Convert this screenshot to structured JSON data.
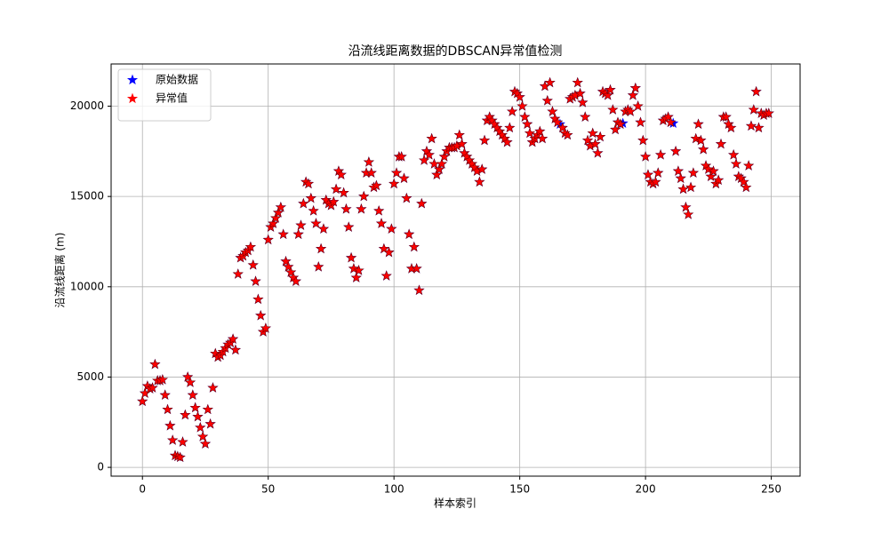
{
  "chart_data": {
    "type": "scatter",
    "title": "沿流线距离数据的DBSCAN异常值检测",
    "xlabel": "样本索引",
    "ylabel": "沿流线距离 (m)",
    "xlim": [
      -12.45,
      261.45
    ],
    "ylim": [
      -487,
      22337
    ],
    "xticks": [
      0,
      50,
      100,
      150,
      200,
      250
    ],
    "yticks": [
      0,
      5000,
      10000,
      15000,
      20000
    ],
    "grid": true,
    "legend": "upper-left",
    "x": [
      0,
      1,
      2,
      3,
      4,
      5,
      6,
      7,
      8,
      9,
      10,
      11,
      12,
      13,
      14,
      15,
      16,
      17,
      18,
      19,
      20,
      21,
      22,
      23,
      24,
      25,
      26,
      27,
      28,
      29,
      30,
      31,
      32,
      33,
      34,
      35,
      36,
      37,
      38,
      39,
      40,
      41,
      42,
      43,
      44,
      45,
      46,
      47,
      48,
      49,
      50,
      51,
      52,
      53,
      54,
      55,
      56,
      57,
      58,
      59,
      60,
      61,
      62,
      63,
      64,
      65,
      66,
      67,
      68,
      69,
      70,
      71,
      72,
      73,
      74,
      75,
      76,
      77,
      78,
      79,
      80,
      81,
      82,
      83,
      84,
      85,
      86,
      87,
      88,
      89,
      90,
      91,
      92,
      93,
      94,
      95,
      96,
      97,
      98,
      99,
      100,
      101,
      102,
      103,
      104,
      105,
      106,
      107,
      108,
      109,
      110,
      111,
      112,
      113,
      114,
      115,
      116,
      117,
      118,
      119,
      120,
      121,
      122,
      123,
      124,
      125,
      126,
      127,
      128,
      129,
      130,
      131,
      132,
      133,
      134,
      135,
      136,
      137,
      138,
      139,
      140,
      141,
      142,
      143,
      144,
      145,
      146,
      147,
      148,
      149,
      150,
      151,
      152,
      153,
      154,
      155,
      156,
      157,
      158,
      159,
      160,
      161,
      162,
      163,
      164,
      165,
      166,
      167,
      168,
      169,
      170,
      171,
      172,
      173,
      174,
      175,
      176,
      177,
      178,
      179,
      180,
      181,
      182,
      183,
      184,
      185,
      186,
      187,
      188,
      189,
      190,
      191,
      192,
      193,
      194,
      195,
      196,
      197,
      198,
      199,
      200,
      201,
      202,
      203,
      204,
      205,
      206,
      207,
      208,
      209,
      210,
      211,
      212,
      213,
      214,
      215,
      216,
      217,
      218,
      219,
      220,
      221,
      222,
      223,
      224,
      225,
      226,
      227,
      228,
      229,
      230,
      231,
      232,
      233,
      234,
      235,
      236,
      237,
      238,
      239,
      240,
      241,
      242,
      243,
      244,
      245,
      246,
      247,
      248,
      249
    ],
    "series": [
      {
        "name": "原始数据",
        "color": "#0000ff",
        "values": [
          3650,
          4100,
          4500,
          4350,
          4400,
          5700,
          4800,
          4800,
          4850,
          4000,
          3200,
          2300,
          1500,
          650,
          600,
          550,
          1400,
          2900,
          5000,
          4700,
          4000,
          3300,
          2800,
          2200,
          1700,
          1300,
          3200,
          2400,
          4400,
          6300,
          6100,
          6200,
          6400,
          6600,
          6800,
          6900,
          7100,
          6500,
          10700,
          11600,
          11700,
          11900,
          12000,
          12200,
          11200,
          10300,
          9300,
          8400,
          7500,
          7700,
          12600,
          13300,
          13500,
          13800,
          14100,
          14400,
          12900,
          11400,
          11100,
          10800,
          10500,
          10300,
          12900,
          13400,
          14600,
          15800,
          15700,
          14900,
          14200,
          13500,
          11100,
          12100,
          13200,
          14800,
          14600,
          14500,
          14700,
          15400,
          16400,
          16200,
          15200,
          14300,
          13300,
          11600,
          11000,
          10500,
          10900,
          14300,
          15000,
          16300,
          16900,
          16300,
          15500,
          15600,
          14200,
          13500,
          12100,
          10600,
          11900,
          13200,
          15700,
          16300,
          17200,
          17200,
          16000,
          14900,
          12900,
          11000,
          12200,
          11000,
          9800,
          14600,
          17000,
          17500,
          17300,
          18200,
          16800,
          16200,
          16500,
          16800,
          17200,
          17500,
          17700,
          17700,
          17700,
          17800,
          18400,
          17900,
          17400,
          17200,
          17000,
          16800,
          16600,
          16400,
          15800,
          16500,
          18100,
          19200,
          19400,
          19200,
          19000,
          18800,
          18600,
          18400,
          18200,
          18000,
          18800,
          19700,
          20800,
          20700,
          20500,
          20000,
          19400,
          19000,
          18500,
          18000,
          18200,
          18400,
          18600,
          18200,
          21100,
          20300,
          21300,
          19700,
          19300,
          19100,
          19000,
          18800,
          18500,
          18400,
          20400,
          20500,
          20600,
          21300,
          20700,
          20200,
          19400,
          18100,
          17800,
          18500,
          17900,
          17400,
          18300,
          20800,
          20700,
          20600,
          20900,
          19800,
          18700,
          19100,
          19000,
          19050,
          19700,
          19800,
          19700,
          20600,
          21000,
          20000,
          19100,
          18100,
          17200,
          16200,
          15800,
          15700,
          15800,
          16300,
          17300,
          19200,
          19300,
          19400,
          19100,
          19050,
          17500,
          16400,
          16000,
          15400,
          14400,
          14000,
          15500,
          16300,
          18200,
          19000,
          18100,
          17600,
          16700,
          16500,
          16100,
          16400,
          15700,
          15900,
          17900,
          19400,
          19400,
          19000,
          18800,
          17300,
          16800,
          16100,
          16000,
          15800,
          15500,
          16700,
          18900,
          19800,
          20800,
          18800,
          19600,
          19500,
          19600,
          19600
        ]
      },
      {
        "name": "异常值",
        "color": "#ff0000",
        "values": [
          3650,
          4100,
          4500,
          4350,
          4400,
          5700,
          4800,
          4800,
          4850,
          4000,
          3200,
          2300,
          1500,
          650,
          600,
          550,
          1400,
          2900,
          5000,
          4700,
          4000,
          3300,
          2800,
          2200,
          1700,
          1300,
          3200,
          2400,
          4400,
          6300,
          6100,
          6200,
          6400,
          6600,
          6800,
          6900,
          7100,
          6500,
          10700,
          11600,
          11700,
          11900,
          12000,
          12200,
          11200,
          10300,
          9300,
          8400,
          7500,
          7700,
          12600,
          13300,
          13500,
          13800,
          14100,
          14400,
          12900,
          11400,
          11100,
          10800,
          10500,
          10300,
          12900,
          13400,
          14600,
          15800,
          15700,
          14900,
          14200,
          13500,
          11100,
          12100,
          13200,
          14800,
          14600,
          14500,
          14700,
          15400,
          16400,
          16200,
          15200,
          14300,
          13300,
          11600,
          11000,
          10500,
          10900,
          14300,
          15000,
          16300,
          16900,
          16300,
          15500,
          15600,
          14200,
          13500,
          12100,
          10600,
          11900,
          13200,
          15700,
          16300,
          17200,
          17200,
          16000,
          14900,
          12900,
          11000,
          12200,
          11000,
          9800,
          14600,
          17000,
          17500,
          17300,
          18200,
          16800,
          16200,
          16500,
          16800,
          17200,
          17500,
          17700,
          17700,
          17700,
          17800,
          18400,
          17900,
          17400,
          17200,
          17000,
          16800,
          16600,
          16400,
          15800,
          16500,
          18100,
          19200,
          19400,
          19200,
          19000,
          18800,
          18600,
          18400,
          18200,
          18000,
          18800,
          19700,
          20800,
          20700,
          20500,
          20000,
          19400,
          19000,
          18500,
          18000,
          18200,
          18400,
          18600,
          18200,
          21100,
          20300,
          21300,
          19700,
          19300,
          19100,
          null,
          18800,
          18500,
          18400,
          20400,
          20500,
          20600,
          21300,
          20700,
          20200,
          19400,
          18100,
          17800,
          18500,
          17900,
          17400,
          18300,
          20800,
          20700,
          20600,
          20900,
          19800,
          18700,
          19100,
          19000,
          null,
          19700,
          19800,
          19700,
          20600,
          21000,
          20000,
          19100,
          18100,
          17200,
          16200,
          15800,
          15700,
          15800,
          16300,
          17300,
          19200,
          19300,
          19400,
          19100,
          null,
          17500,
          16400,
          16000,
          15400,
          14400,
          14000,
          15500,
          16300,
          18200,
          19000,
          18100,
          17600,
          16700,
          16500,
          16100,
          16400,
          15700,
          15900,
          17900,
          19400,
          19400,
          19000,
          18800,
          17300,
          16800,
          16100,
          16000,
          15800,
          15500,
          16700,
          18900,
          19800,
          20800,
          18800,
          19600,
          19500,
          19600,
          19600
        ]
      }
    ]
  }
}
